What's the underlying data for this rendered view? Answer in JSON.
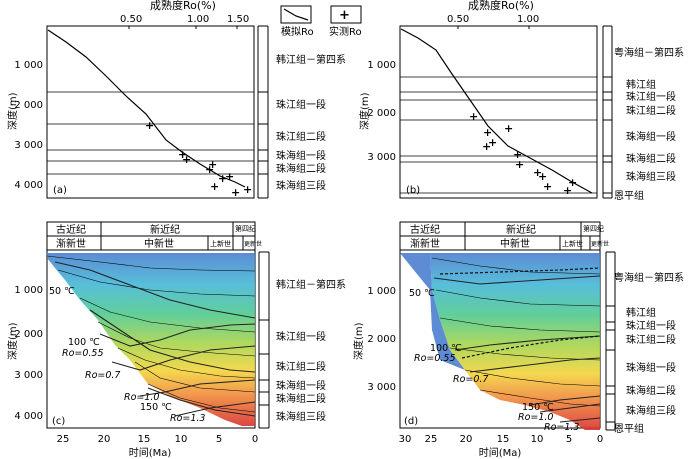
{
  "top_axis_title": "成熟度Ro(%)",
  "legend": {
    "simulated": "模拟Ro",
    "measured": "实测Ro"
  },
  "depth_label": "深度(m)",
  "time_label": "时间(Ma)",
  "panels": {
    "a": {
      "tag": "(a)",
      "ro_ticks": [
        "0.50",
        "1.00",
        "1.50"
      ],
      "depth_ticks": [
        "1 000",
        "2 000",
        "3 000",
        "4 000"
      ],
      "formations": [
        "韩江组－第四系",
        "珠江组一段",
        "珠江组二段",
        "珠海组一段",
        "珠海组二段",
        "珠海组三段"
      ]
    },
    "b": {
      "tag": "(b)",
      "ro_ticks": [
        "0.50",
        "1.00"
      ],
      "depth_ticks": [
        "1 000",
        "2 000",
        "3 000"
      ],
      "formations": [
        "粤海组－第四系",
        "韩江组",
        "珠江组一段",
        "珠江组二段",
        "珠海组一段",
        "珠海组二段",
        "珠海组三段",
        "恩平组"
      ]
    },
    "c": {
      "tag": "(c)",
      "epochs_top": [
        "古近纪",
        "新近纪",
        "第四纪"
      ],
      "epochs_bottom": [
        "渐新世",
        "中新世",
        "上新世",
        "更新世"
      ],
      "depth_ticks": [
        "1 000",
        "2 000",
        "3 000",
        "4 000"
      ],
      "time_ticks": [
        "25",
        "20",
        "15",
        "10",
        "5",
        "0"
      ],
      "labels": [
        "50 ℃",
        "100 ℃",
        "Ro=0.55",
        "Ro=0.7",
        "Ro=1.0",
        "150 ℃",
        "Ro=1.3"
      ],
      "formations": [
        "韩江组－第四系",
        "珠江组一段",
        "珠江组二段",
        "珠海组一段",
        "珠海组二段",
        "珠海组三段"
      ]
    },
    "d": {
      "tag": "(d)",
      "epochs_top": [
        "古近纪",
        "新近纪",
        "第四纪"
      ],
      "epochs_bottom": [
        "渐新世",
        "中新世",
        "上新世",
        "更新世"
      ],
      "depth_ticks": [
        "1 000",
        "2 000",
        "3 000"
      ],
      "time_ticks": [
        "30",
        "25",
        "20",
        "15",
        "10",
        "5",
        "0"
      ],
      "labels": [
        "50 ℃",
        "100 ℃",
        "Ro=0.55",
        "Ro=0.7",
        "150 ℃",
        "Ro=1.0",
        "Ro=1.3"
      ],
      "formations": [
        "粤海组－第四系",
        "韩江组",
        "珠江组一段",
        "珠江组二段",
        "珠海组一段",
        "珠海组二段",
        "珠海组三段",
        "恩平组"
      ]
    }
  },
  "chart_data": [
    {
      "type": "line",
      "panel": "a",
      "xlabel": "成熟度Ro(%)",
      "ylabel": "深度(m)",
      "xlim": [
        0.2,
        1.7
      ],
      "ylim": [
        0,
        4300
      ],
      "series": [
        {
          "name": "模拟Ro",
          "x": [
            0.22,
            0.38,
            0.55,
            0.66,
            0.8,
            0.96,
            1.12,
            1.22,
            1.35,
            1.48,
            1.58
          ],
          "y": [
            150,
            500,
            1000,
            1500,
            2100,
            2800,
            3350,
            3600,
            3900,
            4100,
            4250
          ]
        },
        {
          "name": "实测Ro",
          "x": [
            0.64,
            0.96,
            0.99,
            1.26,
            1.32,
            1.38,
            1.42,
            1.45,
            1.48,
            1.62
          ],
          "y": [
            2500,
            3200,
            3350,
            3500,
            3600,
            3800,
            4000,
            3900,
            4150,
            4100
          ]
        }
      ],
      "formation_tops": [
        0,
        1700,
        2450,
        3100,
        3400,
        3700,
        4300
      ]
    },
    {
      "type": "line",
      "panel": "b",
      "xlabel": "成熟度Ro(%)",
      "ylabel": "深度(m)",
      "xlim": [
        0.2,
        1.5
      ],
      "ylim": [
        0,
        3700
      ],
      "series": [
        {
          "name": "模拟Ro",
          "x": [
            0.22,
            0.32,
            0.45,
            0.55,
            0.68,
            0.82,
            0.98,
            1.12,
            1.28,
            1.45
          ],
          "y": [
            100,
            350,
            900,
            1400,
            2000,
            2550,
            2950,
            3250,
            3450,
            3650
          ]
        },
        {
          "name": "实测Ro",
          "x": [
            0.58,
            0.74,
            0.75,
            0.78,
            0.82,
            0.88,
            0.91,
            1.0,
            1.08,
            1.09,
            1.12,
            1.18
          ],
          "y": [
            2100,
            2450,
            2750,
            2700,
            2400,
            2950,
            3150,
            3200,
            3400,
            3500,
            3600,
            3700
          ]
        }
      ],
      "formation_tops": [
        0,
        1250,
        1600,
        1800,
        2200,
        3000,
        3150,
        3600,
        3700
      ]
    },
    {
      "type": "area",
      "panel": "c",
      "xlabel": "时间(Ma)",
      "ylabel": "深度(m)",
      "xlim": [
        28,
        0
      ],
      "ylim": [
        0,
        4300
      ],
      "isotherms_label": [
        "50 ℃",
        "100 ℃",
        "150 ℃"
      ],
      "ro_contours_label": [
        "Ro=0.55",
        "Ro=0.7",
        "Ro=1.0",
        "Ro=1.3"
      ]
    },
    {
      "type": "area",
      "panel": "d",
      "xlabel": "时间(Ma)",
      "ylabel": "深度(m)",
      "xlim": [
        33,
        0
      ],
      "ylim": [
        0,
        3700
      ],
      "isotherms_label": [
        "50 ℃",
        "100 ℃",
        "150 ℃"
      ],
      "ro_contours_label": [
        "Ro=0.55",
        "Ro=0.7",
        "Ro=1.0",
        "Ro=1.3"
      ]
    }
  ]
}
